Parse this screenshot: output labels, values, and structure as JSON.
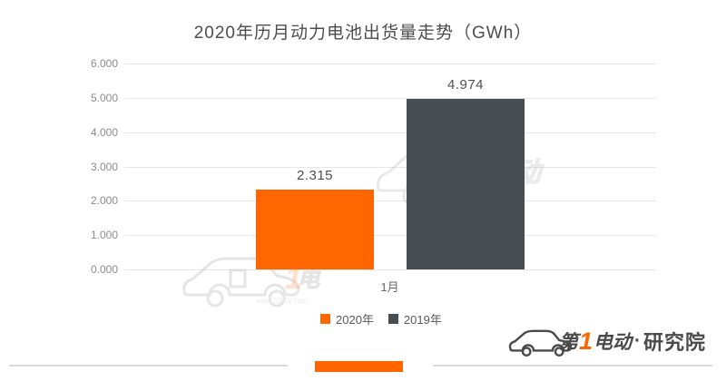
{
  "title": "2020年历月动力电池出货量走势（GWh）",
  "chart_data": {
    "type": "bar",
    "title": "2020年历月动力电池出货量走势（GWh）",
    "categories": [
      "1月"
    ],
    "series": [
      {
        "name": "2020年",
        "values": [
          2.315
        ],
        "color": "#ff6600"
      },
      {
        "name": "2019年",
        "values": [
          4.974
        ],
        "color": "#474d51"
      }
    ],
    "value_labels": [
      "2.315",
      "4.974"
    ],
    "ylim": [
      0,
      6
    ],
    "y_ticks": [
      "6.000",
      "5.000",
      "4.000",
      "3.000",
      "2.000",
      "1.000",
      "0.000"
    ],
    "grid": true,
    "legend_position": "bottom",
    "xlabel": "",
    "ylabel": ""
  },
  "x_axis": {
    "category": "1月"
  },
  "legend": {
    "items": [
      {
        "label": "2020年",
        "color": "#ff6600"
      },
      {
        "label": "2019年",
        "color": "#474d51"
      }
    ]
  },
  "watermark": {
    "label": "第1电动",
    "url": "www.D1EV.com"
  },
  "brand": {
    "pre": "第",
    "one": "1",
    "post": "电动",
    "dot": "·",
    "suffix": "研究院"
  },
  "colors": {
    "accent_orange": "#ff6600",
    "bar_2019_gray": "#474d51",
    "gridline": "#e6e6e6",
    "axis_text": "#8c8c8c",
    "title_text": "#4d4d4d",
    "divider_gray": "#dadada"
  }
}
